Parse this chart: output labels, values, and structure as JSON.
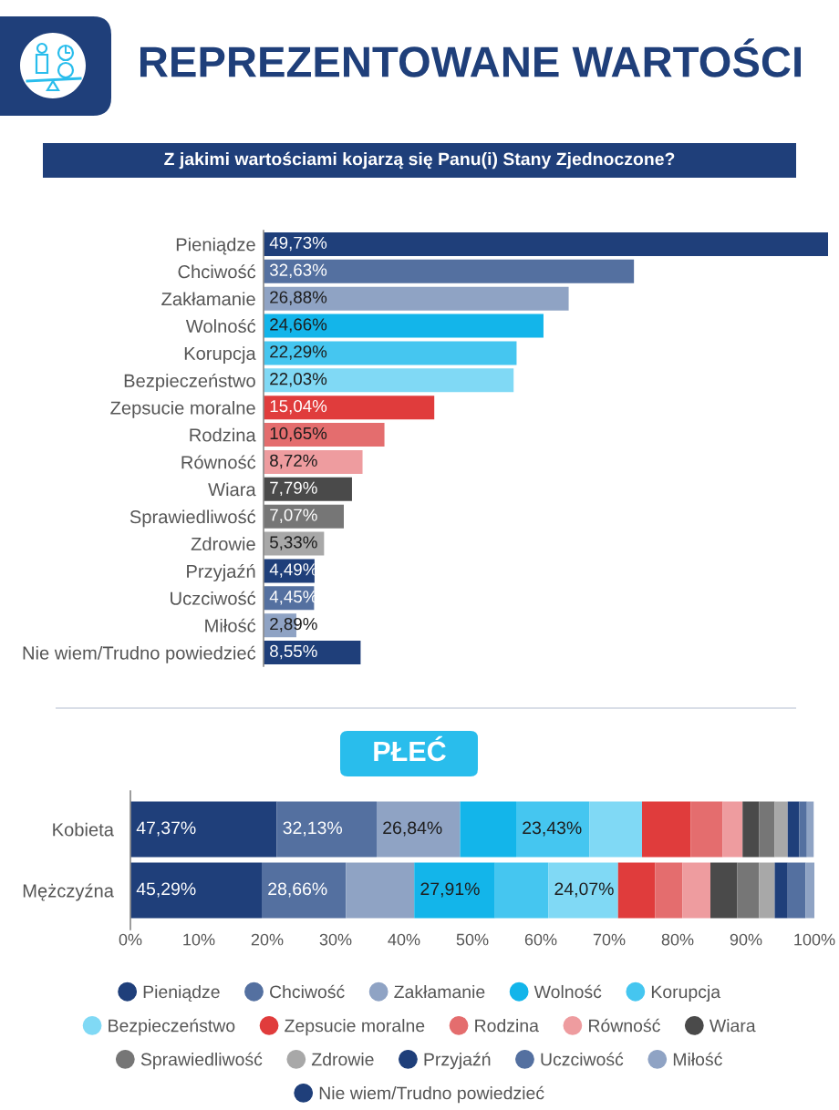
{
  "chart_data": [
    {
      "type": "bar",
      "orientation": "horizontal",
      "title": "REPREZENTOWANE WARTOŚCI",
      "subtitle": "Z jakimi wartościami kojarzą się Panu(i) Stany Zjednoczone?",
      "tick_labels": "y",
      "categories": [
        "Pieniądze",
        "Chciwość",
        "Zakłamanie",
        "Wolność",
        "Korupcja",
        "Bezpieczeństwo",
        "Zepsucie moralne",
        "Rodzina",
        "Równość",
        "Wiara",
        "Sprawiedliwość",
        "Zdrowie",
        "Przyjaźń",
        "Uczciwość",
        "Miłość",
        "Nie wiem/Trudno powiedzieć"
      ],
      "values": [
        49.73,
        32.63,
        26.88,
        24.66,
        22.29,
        22.03,
        15.04,
        10.65,
        8.72,
        7.79,
        7.07,
        5.33,
        4.49,
        4.45,
        2.89,
        8.55
      ],
      "value_labels": [
        "49,73%",
        "32,63%",
        "26,88%",
        "24,66%",
        "22,29%",
        "22,03%",
        "15,04%",
        "10,65%",
        "8,72%",
        "7,79%",
        "7,07%",
        "5,33%",
        "4,49%",
        "4,45%",
        "2,89%",
        "8,55%"
      ],
      "colors": [
        "#1f3f7a",
        "#5470a0",
        "#8fa3c4",
        "#13b5ea",
        "#45c6f0",
        "#80d9f5",
        "#e03c3c",
        "#e46d6e",
        "#ee9c9f",
        "#4a4a4a",
        "#767676",
        "#a8a8a8",
        "#1f3f7a",
        "#5470a0",
        "#8fa3c4",
        "#1f3f7a"
      ]
    },
    {
      "type": "bar",
      "orientation": "horizontal",
      "stacked": true,
      "title": "PŁEĆ",
      "legend": "bottom",
      "categories": [
        "Kobieta",
        "Mężczyźna"
      ],
      "xlim": [
        0,
        100
      ],
      "xticks": [
        {
          "value": 0,
          "label": "0%"
        },
        {
          "value": 10,
          "label": "10%"
        },
        {
          "value": 20,
          "label": "20%"
        },
        {
          "value": 30,
          "label": "30%"
        },
        {
          "value": 40,
          "label": "40%"
        },
        {
          "value": 50,
          "label": "50%"
        },
        {
          "value": 60,
          "label": "60%"
        },
        {
          "value": 70,
          "label": "70%"
        },
        {
          "value": 80,
          "label": "80%"
        },
        {
          "value": 90,
          "label": "90%"
        },
        {
          "value": 100,
          "label": "100%"
        }
      ],
      "series": [
        {
          "name": "Pieniądze",
          "color": "#1f3f7a",
          "values": [
            21.4,
            19.2
          ]
        },
        {
          "name": "Chciwość",
          "color": "#5470a0",
          "values": [
            14.6,
            12.3
          ]
        },
        {
          "name": "Zakłamanie",
          "color": "#8fa3c4",
          "values": [
            12.2,
            10.0
          ]
        },
        {
          "name": "Wolność",
          "color": "#13b5ea",
          "values": [
            8.2,
            11.8
          ]
        },
        {
          "name": "Korupcja",
          "color": "#45c6f0",
          "values": [
            10.7,
            7.8
          ]
        },
        {
          "name": "Bezpieczeństwo",
          "color": "#80d9f5",
          "values": [
            7.7,
            10.2
          ]
        },
        {
          "name": "Zepsucie moralne",
          "color": "#e03c3c",
          "values": [
            7.1,
            5.4
          ]
        },
        {
          "name": "Rodzina",
          "color": "#e46d6e",
          "values": [
            4.7,
            4.0
          ]
        },
        {
          "name": "Równość",
          "color": "#ee9c9f",
          "values": [
            2.9,
            4.1
          ]
        },
        {
          "name": "Wiara",
          "color": "#4a4a4a",
          "values": [
            2.4,
            3.9
          ]
        },
        {
          "name": "Sprawiedliwość",
          "color": "#767676",
          "values": [
            2.3,
            3.2
          ]
        },
        {
          "name": "Zdrowie",
          "color": "#a8a8a8",
          "values": [
            1.9,
            2.3
          ]
        },
        {
          "name": "Przyjaźń",
          "color": "#1f3f7a",
          "values": [
            1.7,
            1.9
          ]
        },
        {
          "name": "Uczciwość",
          "color": "#5470a0",
          "values": [
            1.1,
            2.6
          ]
        },
        {
          "name": "Miłość",
          "color": "#8fa3c4",
          "values": [
            1.0,
            1.3
          ]
        },
        {
          "name": "Nie wiem/Trudno powiedzieć",
          "color": "#1f3f7a",
          "values": [
            null,
            null
          ]
        }
      ],
      "annotations": [
        {
          "text": "47,37%",
          "x": 0,
          "y": "Kobieta"
        },
        {
          "text": "32,13%",
          "x": 21.4,
          "y": "Kobieta"
        },
        {
          "text": "26,84%",
          "x": 36.0,
          "y": "Kobieta"
        },
        {
          "text": "23,43%",
          "x": 56.4,
          "y": "Kobieta"
        },
        {
          "text": "45,29%",
          "x": 0,
          "y": "Mężczyźna"
        },
        {
          "text": "28,66%",
          "x": 19.2,
          "y": "Mężczyźna"
        },
        {
          "text": "27,91%",
          "x": 41.5,
          "y": "Mężczyźna"
        },
        {
          "text": "24,07%",
          "x": 61.1,
          "y": "Mężczyźna"
        }
      ]
    }
  ]
}
